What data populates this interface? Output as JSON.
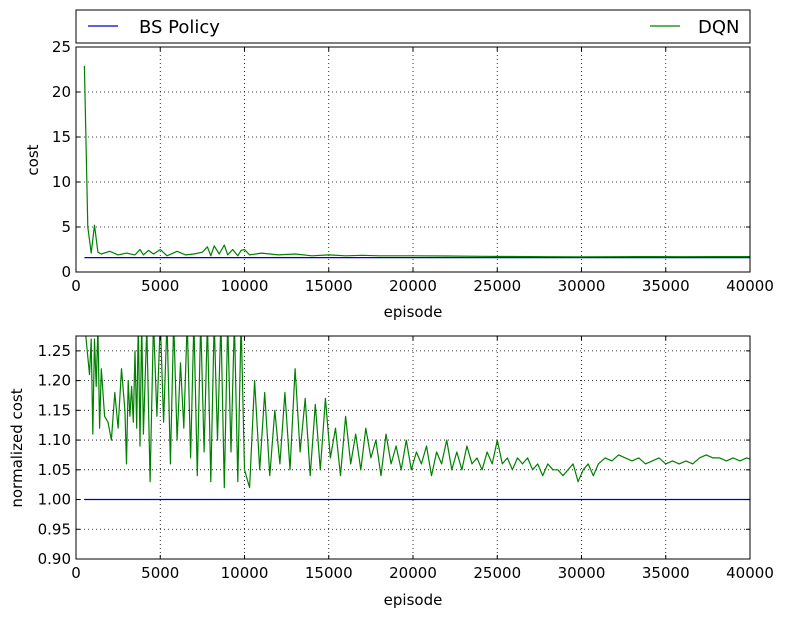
{
  "legend": {
    "items": [
      {
        "label": "BS Policy",
        "color": "#0000cc"
      },
      {
        "label": "DQN",
        "color": "#008000"
      }
    ]
  },
  "chart_data": [
    {
      "type": "line",
      "xlabel": "episode",
      "ylabel": "cost",
      "xlim": [
        0,
        40000
      ],
      "ylim": [
        0,
        25
      ],
      "xticks": [
        0,
        5000,
        10000,
        15000,
        20000,
        25000,
        30000,
        35000,
        40000
      ],
      "yticks": [
        0,
        5,
        10,
        15,
        20,
        25
      ],
      "grid": true,
      "series": [
        {
          "name": "BS Policy",
          "color": "#0000cc",
          "x": [
            500,
            40000
          ],
          "y": [
            1.6,
            1.6
          ]
        },
        {
          "name": "DQN",
          "color": "#008000",
          "x": [
            500,
            700,
            900,
            1100,
            1300,
            1500,
            2000,
            2500,
            3000,
            3500,
            3800,
            4000,
            4300,
            4600,
            5000,
            5400,
            6000,
            6500,
            7000,
            7500,
            7800,
            8000,
            8200,
            8500,
            8800,
            9000,
            9300,
            9600,
            9800,
            10000,
            10300,
            11000,
            12000,
            13000,
            14000,
            15000,
            16000,
            17000,
            18000,
            20000,
            22000,
            24000,
            26000,
            28000,
            30000,
            32000,
            34000,
            36000,
            38000,
            40000
          ],
          "y": [
            22.9,
            5.0,
            2.1,
            5.2,
            2.2,
            2.0,
            2.3,
            1.9,
            2.1,
            1.9,
            2.5,
            1.9,
            2.4,
            2.0,
            2.5,
            1.8,
            2.3,
            1.9,
            2.0,
            2.2,
            2.8,
            1.8,
            2.9,
            2.0,
            3.0,
            1.9,
            2.5,
            1.8,
            2.4,
            2.5,
            1.9,
            2.1,
            1.9,
            2.0,
            1.8,
            1.9,
            1.8,
            1.85,
            1.8,
            1.8,
            1.78,
            1.75,
            1.72,
            1.7,
            1.68,
            1.7,
            1.71,
            1.7,
            1.71,
            1.71
          ]
        }
      ]
    },
    {
      "type": "line",
      "xlabel": "episode",
      "ylabel": "normalized cost",
      "xlim": [
        0,
        40000
      ],
      "ylim": [
        0.9,
        1.275
      ],
      "xticks": [
        0,
        5000,
        10000,
        15000,
        20000,
        25000,
        30000,
        35000,
        40000
      ],
      "yticks": [
        "0.90",
        "0.95",
        "1.00",
        "1.05",
        "1.10",
        "1.15",
        "1.20",
        "1.25"
      ],
      "grid": true,
      "series": [
        {
          "name": "BS Policy",
          "color": "#0000cc",
          "x": [
            500,
            40000
          ],
          "y": [
            1.0,
            1.0
          ]
        },
        {
          "name": "DQN",
          "color": "#008000",
          "x": [
            500,
            800,
            900,
            1000,
            1100,
            1200,
            1300,
            1400,
            1500,
            1700,
            1900,
            2100,
            2300,
            2500,
            2700,
            2900,
            3000,
            3100,
            3200,
            3300,
            3400,
            3500,
            3600,
            3700,
            3800,
            3900,
            4000,
            4200,
            4400,
            4600,
            4800,
            5000,
            5200,
            5400,
            5600,
            5800,
            6000,
            6200,
            6400,
            6600,
            6800,
            7000,
            7200,
            7400,
            7600,
            7800,
            8000,
            8200,
            8400,
            8600,
            8800,
            9000,
            9200,
            9400,
            9600,
            9800,
            10000,
            10300,
            10600,
            10900,
            11200,
            11500,
            11800,
            12100,
            12400,
            12700,
            13000,
            13300,
            13600,
            13900,
            14200,
            14500,
            14800,
            15100,
            15400,
            15700,
            16000,
            16300,
            16600,
            16900,
            17200,
            17500,
            17800,
            18100,
            18400,
            18700,
            19000,
            19300,
            19600,
            19900,
            20200,
            20500,
            20800,
            21100,
            21400,
            21700,
            22000,
            22300,
            22600,
            22900,
            23200,
            23500,
            23800,
            24100,
            24400,
            24700,
            25000,
            25300,
            25600,
            25900,
            26200,
            26500,
            26800,
            27100,
            27400,
            27700,
            28000,
            28300,
            28600,
            28900,
            29200,
            29500,
            29800,
            30100,
            30400,
            30700,
            31000,
            31400,
            31800,
            32200,
            32600,
            33000,
            33400,
            33800,
            34200,
            34600,
            35000,
            35400,
            35800,
            36200,
            36600,
            37000,
            37400,
            37800,
            38200,
            38600,
            39000,
            39400,
            39800,
            40000
          ],
          "y": [
            1.3,
            1.21,
            1.27,
            1.11,
            1.27,
            1.19,
            1.29,
            1.12,
            1.22,
            1.14,
            1.13,
            1.1,
            1.18,
            1.12,
            1.22,
            1.15,
            1.06,
            1.2,
            1.14,
            1.19,
            1.13,
            1.25,
            1.12,
            1.3,
            1.09,
            1.3,
            1.11,
            1.29,
            1.03,
            1.3,
            1.14,
            1.3,
            1.13,
            1.3,
            1.06,
            1.3,
            1.1,
            1.23,
            1.12,
            1.3,
            1.07,
            1.3,
            1.04,
            1.3,
            1.08,
            1.3,
            1.03,
            1.3,
            1.1,
            1.3,
            1.02,
            1.3,
            1.08,
            1.3,
            1.03,
            1.3,
            1.05,
            1.02,
            1.2,
            1.05,
            1.18,
            1.04,
            1.15,
            1.06,
            1.18,
            1.05,
            1.22,
            1.08,
            1.17,
            1.04,
            1.16,
            1.05,
            1.17,
            1.07,
            1.12,
            1.04,
            1.14,
            1.06,
            1.11,
            1.05,
            1.12,
            1.07,
            1.1,
            1.04,
            1.11,
            1.06,
            1.09,
            1.05,
            1.1,
            1.05,
            1.08,
            1.06,
            1.09,
            1.04,
            1.08,
            1.06,
            1.1,
            1.05,
            1.08,
            1.05,
            1.09,
            1.06,
            1.07,
            1.05,
            1.08,
            1.06,
            1.1,
            1.06,
            1.07,
            1.05,
            1.07,
            1.06,
            1.07,
            1.05,
            1.06,
            1.04,
            1.06,
            1.05,
            1.05,
            1.04,
            1.05,
            1.06,
            1.03,
            1.05,
            1.06,
            1.04,
            1.06,
            1.07,
            1.065,
            1.075,
            1.07,
            1.065,
            1.07,
            1.06,
            1.065,
            1.07,
            1.06,
            1.065,
            1.06,
            1.065,
            1.06,
            1.07,
            1.075,
            1.07,
            1.07,
            1.065,
            1.07,
            1.065,
            1.07,
            1.068
          ]
        }
      ]
    }
  ]
}
